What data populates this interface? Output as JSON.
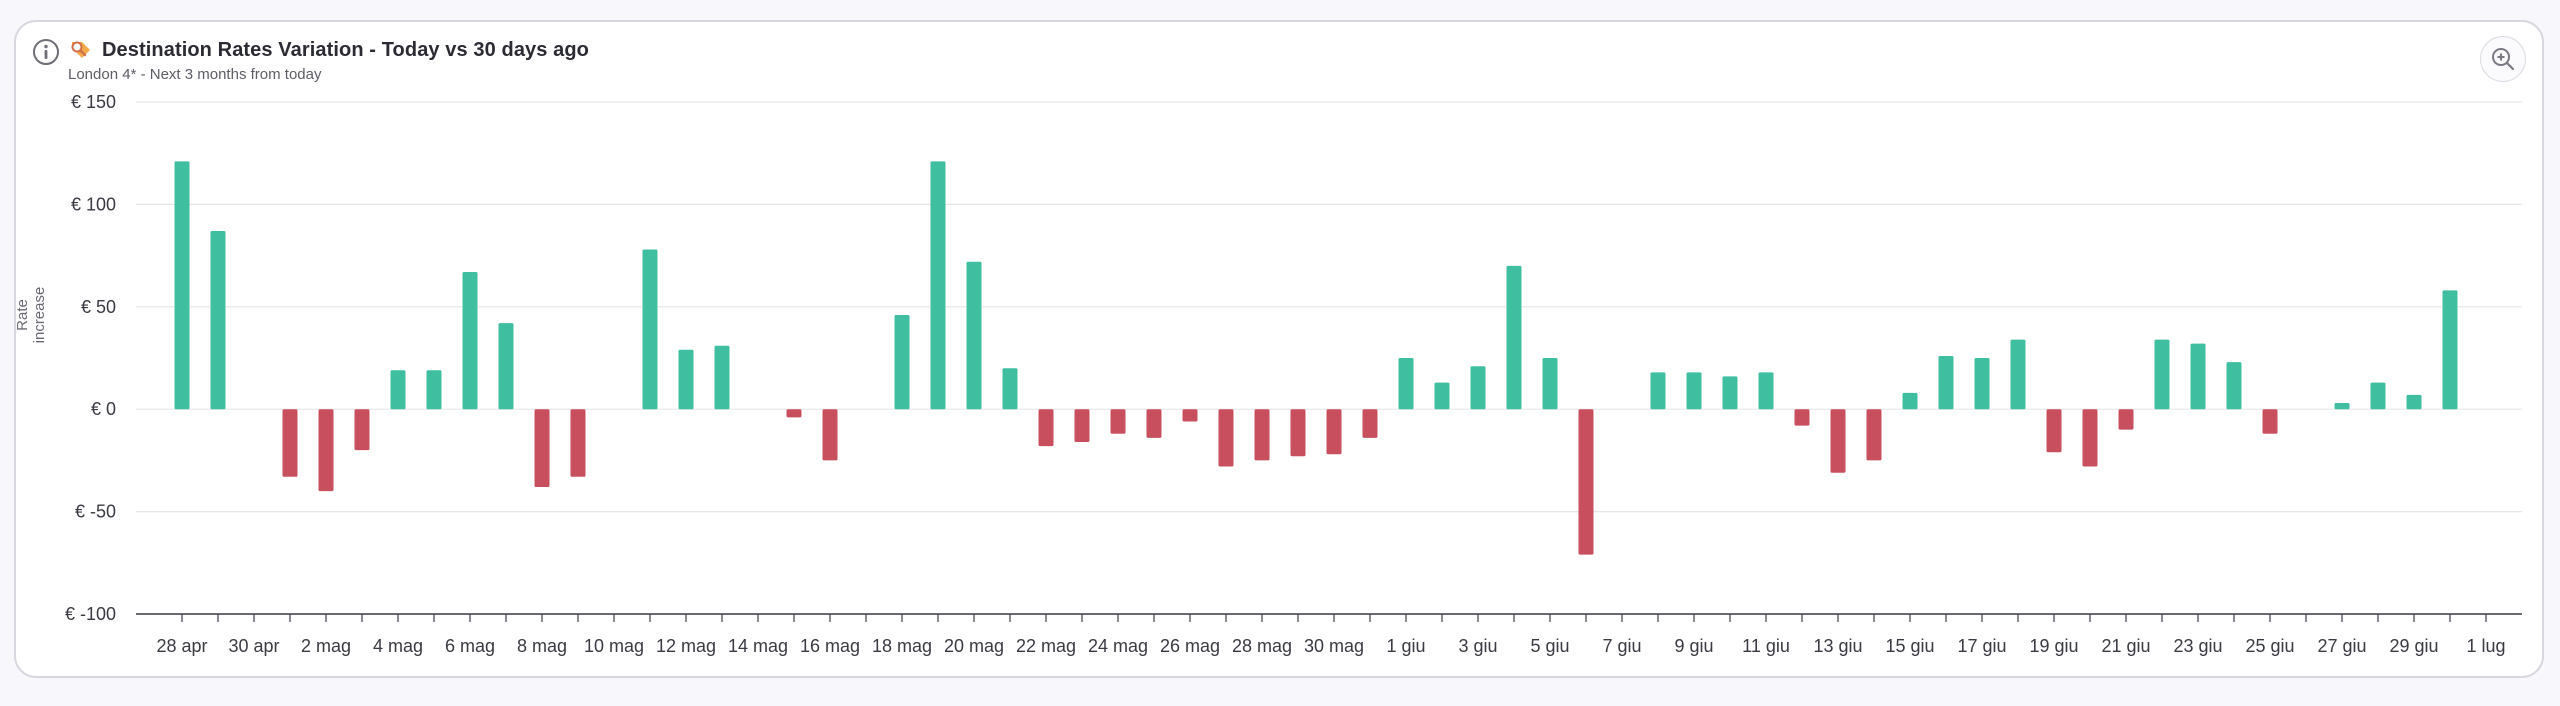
{
  "header": {
    "title": "Destination Rates Variation - Today vs 30 days ago",
    "subtitle": "London 4* - Next 3 months from today"
  },
  "icons": {
    "info": "info-icon",
    "title": "magnifier-tag-icon",
    "zoom": "zoom-in-icon"
  },
  "colors": {
    "positive": "#3fbf9f",
    "negative": "#c8505e",
    "grid": "#e6e6ea"
  },
  "chart_data": {
    "type": "bar",
    "title": "Destination Rates Variation - Today vs 30 days ago",
    "subtitle": "London 4* - Next 3 months from today",
    "ylabel": "Rate increase",
    "ylim": [
      -100,
      150
    ],
    "yticks": [
      150,
      100,
      50,
      0,
      -50,
      -100
    ],
    "ytick_labels": [
      "€ 150",
      "€ 100",
      "€ 50",
      "€ 0",
      "€ -50",
      "€ -100"
    ],
    "grid": true,
    "x": [
      "28 apr",
      "29 apr",
      "30 apr",
      "1 mag",
      "2 mag",
      "3 mag",
      "4 mag",
      "5 mag",
      "6 mag",
      "7 mag",
      "8 mag",
      "9 mag",
      "10 mag",
      "11 mag",
      "12 mag",
      "13 mag",
      "14 mag",
      "15 mag",
      "16 mag",
      "17 mag",
      "18 mag",
      "19 mag",
      "20 mag",
      "21 mag",
      "22 mag",
      "23 mag",
      "24 mag",
      "25 mag",
      "26 mag",
      "27 mag",
      "28 mag",
      "29 mag",
      "30 mag",
      "31 mag",
      "1 giu",
      "2 giu",
      "3 giu",
      "4 giu",
      "5 giu",
      "6 giu",
      "7 giu",
      "8 giu",
      "9 giu",
      "10 giu",
      "11 giu",
      "12 giu",
      "13 giu",
      "14 giu",
      "15 giu",
      "16 giu",
      "17 giu",
      "18 giu",
      "19 giu",
      "20 giu",
      "21 giu",
      "22 giu",
      "23 giu",
      "24 giu",
      "25 giu",
      "26 giu",
      "27 giu",
      "28 giu",
      "29 giu",
      "30 giu",
      "1 lug"
    ],
    "values": [
      121,
      87,
      0,
      -33,
      -40,
      -20,
      19,
      19,
      67,
      42,
      -38,
      -33,
      0,
      78,
      29,
      31,
      0,
      -4,
      -25,
      0,
      46,
      121,
      72,
      20,
      -18,
      -16,
      -12,
      -14,
      -6,
      -28,
      -25,
      -23,
      -22,
      -14,
      25,
      13,
      21,
      70,
      25,
      -71,
      0,
      18,
      18,
      16,
      18,
      -8,
      -31,
      -25,
      8,
      26,
      25,
      34,
      -21,
      -28,
      -10,
      34,
      32,
      23,
      -12,
      0,
      3,
      13,
      7,
      58,
      0
    ],
    "tick_labels": [
      "28 apr",
      "30 apr",
      "2 mag",
      "4 mag",
      "6 mag",
      "8 mag",
      "10 mag",
      "12 mag",
      "14 mag",
      "16 mag",
      "18 mag",
      "20 mag",
      "22 mag",
      "24 mag",
      "26 mag",
      "28 mag",
      "30 mag",
      "1 giu",
      "3 giu",
      "5 giu",
      "7 giu",
      "9 giu",
      "11 giu",
      "13 giu",
      "15 giu",
      "17 giu",
      "19 giu",
      "21 giu",
      "23 giu",
      "25 giu",
      "27 giu",
      "29 giu",
      "1 lug"
    ]
  }
}
